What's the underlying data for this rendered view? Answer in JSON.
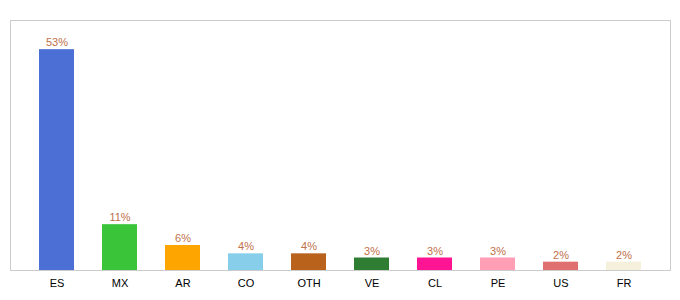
{
  "chart_data": {
    "type": "bar",
    "categories": [
      "ES",
      "MX",
      "AR",
      "CO",
      "OTH",
      "VE",
      "CL",
      "PE",
      "US",
      "FR"
    ],
    "values": [
      53,
      11,
      6,
      4,
      4,
      3,
      3,
      3,
      2,
      2
    ],
    "value_labels": [
      "53%",
      "11%",
      "6%",
      "4%",
      "4%",
      "3%",
      "3%",
      "3%",
      "2%",
      "2%"
    ],
    "colors": [
      "#4B6FD4",
      "#3AC43A",
      "#FFA500",
      "#87CEEB",
      "#B8621B",
      "#2E7D32",
      "#FF1493",
      "#FF9EB5",
      "#E07070",
      "#F5F0DC"
    ],
    "ylim": [
      0,
      60
    ],
    "data_labels": true,
    "tick_labels": "x",
    "grid": false
  }
}
